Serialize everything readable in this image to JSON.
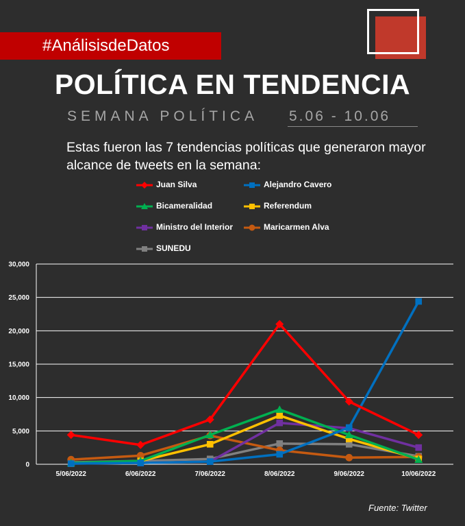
{
  "header": {
    "hashtag": "#AnálisisdeDatos",
    "title": "POLÍTICA EN TENDENCIA",
    "subtitle_left": "SEMANA  POLÍTICA",
    "subtitle_dates": "5.06 - 10.06",
    "description": "Estas fueron las 7 tendencias políticas que generaron mayor alcance de tweets en la semana:"
  },
  "source": "Fuente: Twitter",
  "colors": {
    "background": "#2d2d2d",
    "accent": "#c00000"
  },
  "chart_data": {
    "type": "line",
    "categories": [
      "5/06/2022",
      "6/06/2022",
      "7/06/2022",
      "8/06/2022",
      "9/06/2022",
      "10/06/2022"
    ],
    "ylim": [
      0,
      30000
    ],
    "yticks": [
      "0",
      "5,000",
      "10,000",
      "15,000",
      "20,000",
      "25,000",
      "30,000"
    ],
    "grid": true,
    "legend_position": "top",
    "series": [
      {
        "name": "Juan Silva",
        "color": "#ff0000",
        "marker": "diamond",
        "values": [
          4400,
          2900,
          6700,
          21000,
          9400,
          4400
        ]
      },
      {
        "name": "Alejandro Cavero",
        "color": "#0070c0",
        "marker": "square",
        "values": [
          100,
          200,
          400,
          1500,
          5500,
          24400
        ]
      },
      {
        "name": "Bicameralidad",
        "color": "#00b050",
        "marker": "triangle",
        "values": [
          200,
          500,
          4400,
          8200,
          4400,
          700
        ]
      },
      {
        "name": "Referendum",
        "color": "#ffc000",
        "marker": "square",
        "values": [
          100,
          500,
          3000,
          7300,
          3800,
          800
        ]
      },
      {
        "name": "Ministro del Interior",
        "color": "#7030a0",
        "marker": "square",
        "values": [
          100,
          200,
          400,
          6200,
          5400,
          2500
        ]
      },
      {
        "name": "Maricarmen Alva",
        "color": "#c55a11",
        "marker": "circle",
        "values": [
          700,
          1300,
          4300,
          2100,
          1000,
          1100
        ]
      },
      {
        "name": "SUNEDU",
        "color": "#808080",
        "marker": "square",
        "values": [
          300,
          500,
          800,
          3100,
          3000,
          1200
        ]
      }
    ]
  }
}
